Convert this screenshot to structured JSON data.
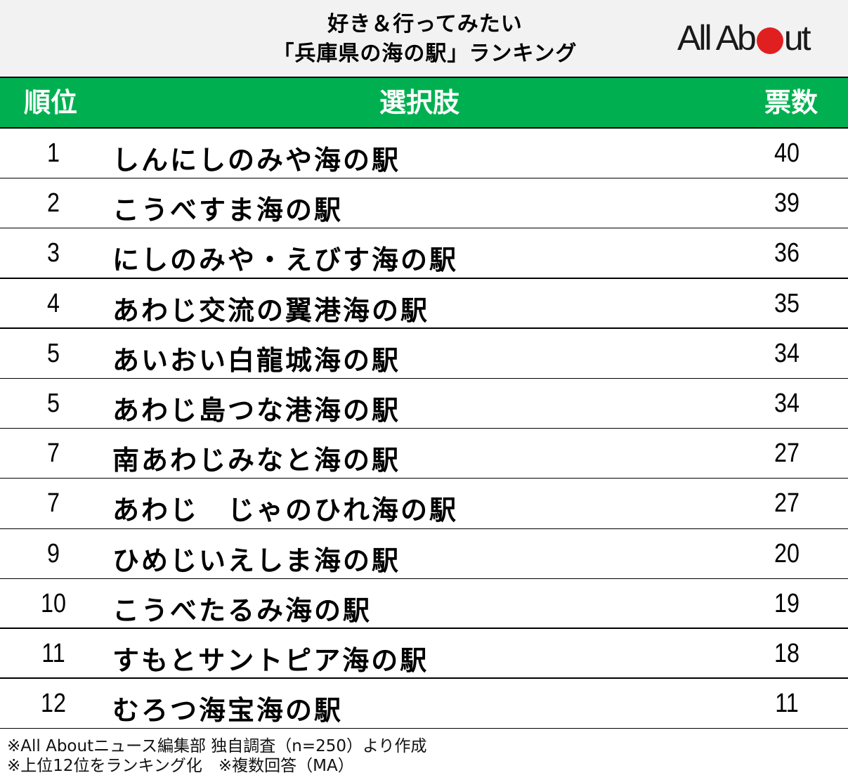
{
  "title": {
    "line1": "好き＆行ってみたい",
    "line2": "「兵庫県の海の駅」ランキング"
  },
  "logo": {
    "text_before": "All Ab",
    "text_after": "ut",
    "dot_color": "#e02020"
  },
  "colors": {
    "header_bg": "#00b050",
    "title_bg": "#f2f2f2"
  },
  "table": {
    "headers": {
      "rank": "順位",
      "choice": "選択肢",
      "votes": "票数"
    },
    "rows": [
      {
        "rank": "1",
        "name": "しんにしのみや海の駅",
        "votes": "40"
      },
      {
        "rank": "2",
        "name": "こうべすま海の駅",
        "votes": "39"
      },
      {
        "rank": "3",
        "name": "にしのみや・えびす海の駅",
        "votes": "36"
      },
      {
        "rank": "4",
        "name": "あわじ交流の翼港海の駅",
        "votes": "35"
      },
      {
        "rank": "5",
        "name": "あいおい白龍城海の駅",
        "votes": "34"
      },
      {
        "rank": "5",
        "name": "あわじ島つな港海の駅",
        "votes": "34"
      },
      {
        "rank": "7",
        "name": "南あわじみなと海の駅",
        "votes": "27"
      },
      {
        "rank": "7",
        "name": "あわじ　じゃのひれ海の駅",
        "votes": "27"
      },
      {
        "rank": "9",
        "name": "ひめじいえしま海の駅",
        "votes": "20"
      },
      {
        "rank": "10",
        "name": "こうべたるみ海の駅",
        "votes": "19"
      },
      {
        "rank": "11",
        "name": "すもとサントピア海の駅",
        "votes": "18"
      },
      {
        "rank": "12",
        "name": "むろつ海宝海の駅",
        "votes": "11"
      }
    ]
  },
  "footnotes": {
    "line1": "※All Aboutニュース編集部 独自調査（n=250）より作成",
    "line2": "※上位12位をランキング化　※複数回答（MA）"
  }
}
